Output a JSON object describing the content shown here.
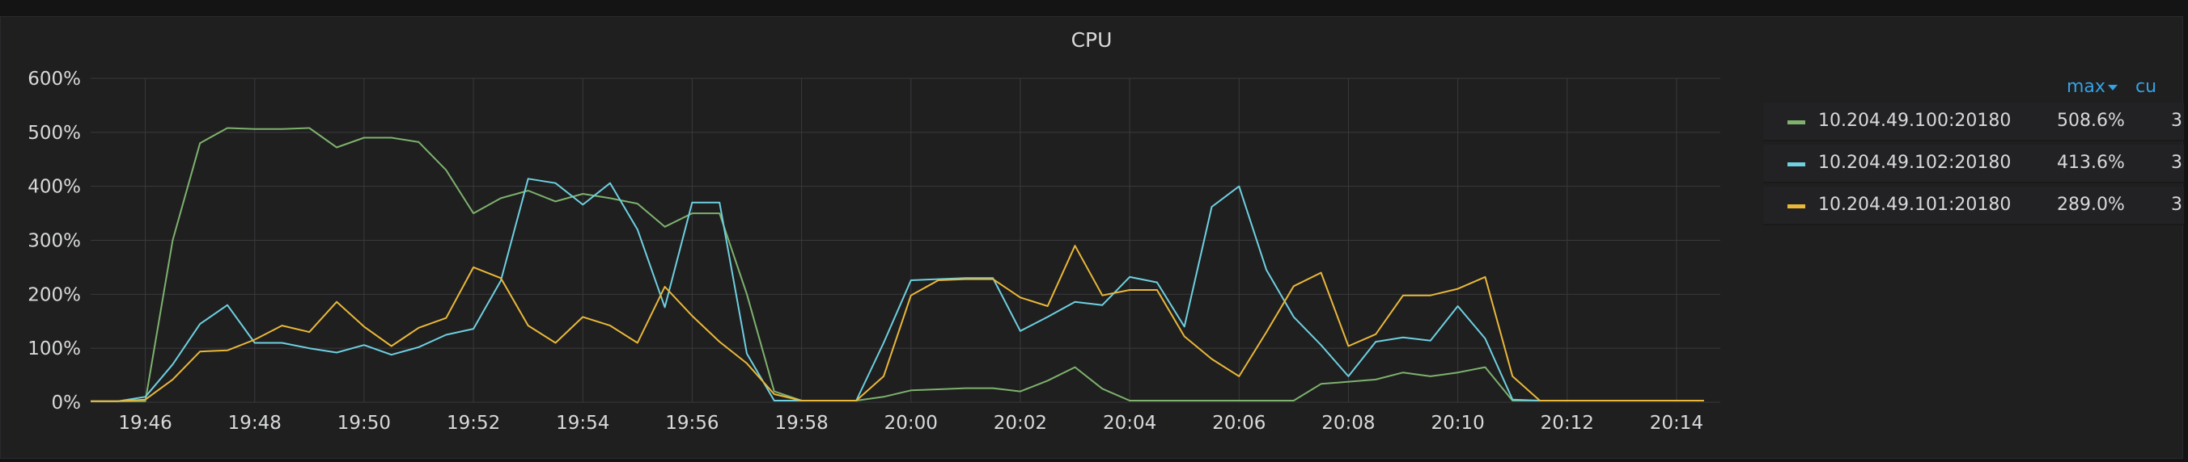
{
  "panel": {
    "title": "CPU"
  },
  "legend": {
    "columns": {
      "max": "max",
      "current": "cu"
    },
    "rows": [
      {
        "name": "10.204.49.100:20180",
        "max": "508.6%",
        "current": "3",
        "color": "#7eb26d"
      },
      {
        "name": "10.204.49.102:20180",
        "max": "413.6%",
        "current": "3",
        "color": "#6ed0e0"
      },
      {
        "name": "10.204.49.101:20180",
        "max": "289.0%",
        "current": "3",
        "color": "#eab839"
      }
    ]
  },
  "chart_data": {
    "type": "line",
    "title": "CPU",
    "xlabel": "",
    "ylabel": "",
    "ylim": [
      0,
      600
    ],
    "yticks": [
      "0%",
      "100%",
      "200%",
      "300%",
      "400%",
      "500%",
      "600%"
    ],
    "xticks": [
      "19:46",
      "19:48",
      "19:50",
      "19:52",
      "19:54",
      "19:56",
      "19:58",
      "20:00",
      "20:02",
      "20:04",
      "20:06",
      "20:08",
      "20:10",
      "20:12",
      "20:14"
    ],
    "xlim_minutes_since_19_45": [
      0,
      29.8
    ],
    "grid": true,
    "legend_placement": "right",
    "series": [
      {
        "name": "10.204.49.100:20180",
        "color": "#7eb26d",
        "points": [
          [
            "19:45",
            2
          ],
          [
            "19:45:30",
            2
          ],
          [
            "19:46",
            2
          ],
          [
            "19:46:30",
            300
          ],
          [
            "19:47",
            480
          ],
          [
            "19:47:30",
            508
          ],
          [
            "19:48",
            506
          ],
          [
            "19:48:30",
            506
          ],
          [
            "19:49",
            508
          ],
          [
            "19:49:30",
            472
          ],
          [
            "19:50",
            490
          ],
          [
            "19:50:30",
            490
          ],
          [
            "19:51",
            482
          ],
          [
            "19:51:30",
            430
          ],
          [
            "19:52",
            350
          ],
          [
            "19:52:30",
            378
          ],
          [
            "19:53",
            392
          ],
          [
            "19:53:30",
            372
          ],
          [
            "19:54",
            386
          ],
          [
            "19:54:30",
            378
          ],
          [
            "19:55",
            368
          ],
          [
            "19:55:30",
            325
          ],
          [
            "19:56",
            350
          ],
          [
            "19:56:30",
            350
          ],
          [
            "19:57",
            200
          ],
          [
            "19:57:30",
            20
          ],
          [
            "19:58",
            3
          ],
          [
            "19:58:30",
            3
          ],
          [
            "19:59",
            3
          ],
          [
            "19:59:30",
            10
          ],
          [
            "20:00",
            22
          ],
          [
            "20:00:30",
            24
          ],
          [
            "20:01",
            26
          ],
          [
            "20:01:30",
            26
          ],
          [
            "20:02",
            20
          ],
          [
            "20:02:30",
            40
          ],
          [
            "20:03",
            65
          ],
          [
            "20:03:30",
            25
          ],
          [
            "20:04",
            3
          ],
          [
            "20:04:30",
            3
          ],
          [
            "20:05",
            3
          ],
          [
            "20:05:30",
            3
          ],
          [
            "20:06",
            3
          ],
          [
            "20:06:30",
            3
          ],
          [
            "20:07",
            3
          ],
          [
            "20:07:30",
            34
          ],
          [
            "20:08",
            38
          ],
          [
            "20:08:30",
            42
          ],
          [
            "20:09",
            55
          ],
          [
            "20:09:30",
            48
          ],
          [
            "20:10",
            55
          ],
          [
            "20:10:30",
            65
          ],
          [
            "20:11",
            3
          ],
          [
            "20:11:30",
            3
          ],
          [
            "20:12",
            3
          ],
          [
            "20:12:30",
            3
          ],
          [
            "20:13",
            3
          ],
          [
            "20:13:30",
            3
          ],
          [
            "20:14",
            3
          ],
          [
            "20:14:30",
            3
          ]
        ]
      },
      {
        "name": "10.204.49.102:20180",
        "color": "#6ed0e0",
        "points": [
          [
            "19:45",
            2
          ],
          [
            "19:45:30",
            2
          ],
          [
            "19:46",
            10
          ],
          [
            "19:46:30",
            70
          ],
          [
            "19:47",
            145
          ],
          [
            "19:47:30",
            180
          ],
          [
            "19:48",
            110
          ],
          [
            "19:48:30",
            110
          ],
          [
            "19:49",
            100
          ],
          [
            "19:49:30",
            92
          ],
          [
            "19:50",
            106
          ],
          [
            "19:50:30",
            88
          ],
          [
            "19:51",
            102
          ],
          [
            "19:51:30",
            125
          ],
          [
            "19:52",
            136
          ],
          [
            "19:52:30",
            225
          ],
          [
            "19:53",
            414
          ],
          [
            "19:53:30",
            406
          ],
          [
            "19:54",
            366
          ],
          [
            "19:54:30",
            406
          ],
          [
            "19:55",
            320
          ],
          [
            "19:55:30",
            176
          ],
          [
            "19:56",
            370
          ],
          [
            "19:56:30",
            370
          ],
          [
            "19:57",
            90
          ],
          [
            "19:57:30",
            3
          ],
          [
            "19:58",
            3
          ],
          [
            "19:58:30",
            3
          ],
          [
            "19:59",
            3
          ],
          [
            "19:59:30",
            110
          ],
          [
            "20:00",
            226
          ],
          [
            "20:00:30",
            228
          ],
          [
            "20:01",
            230
          ],
          [
            "20:01:30",
            230
          ],
          [
            "20:02",
            132
          ],
          [
            "20:02:30",
            158
          ],
          [
            "20:03",
            186
          ],
          [
            "20:03:30",
            180
          ],
          [
            "20:04",
            232
          ],
          [
            "20:04:30",
            222
          ],
          [
            "20:05",
            140
          ],
          [
            "20:05:30",
            362
          ],
          [
            "20:06",
            400
          ],
          [
            "20:06:30",
            245
          ],
          [
            "20:07",
            158
          ],
          [
            "20:07:30",
            106
          ],
          [
            "20:08",
            48
          ],
          [
            "20:08:30",
            112
          ],
          [
            "20:09",
            120
          ],
          [
            "20:09:30",
            114
          ],
          [
            "20:10",
            178
          ],
          [
            "20:10:30",
            118
          ],
          [
            "20:11",
            5
          ],
          [
            "20:11:30",
            3
          ],
          [
            "20:12",
            3
          ],
          [
            "20:12:30",
            3
          ],
          [
            "20:13",
            3
          ],
          [
            "20:13:30",
            3
          ],
          [
            "20:14",
            3
          ],
          [
            "20:14:30",
            3
          ]
        ]
      },
      {
        "name": "10.204.49.101:20180",
        "color": "#eab839",
        "points": [
          [
            "19:45",
            2
          ],
          [
            "19:45:30",
            2
          ],
          [
            "19:46",
            5
          ],
          [
            "19:46:30",
            42
          ],
          [
            "19:47",
            94
          ],
          [
            "19:47:30",
            96
          ],
          [
            "19:48",
            116
          ],
          [
            "19:48:30",
            142
          ],
          [
            "19:49",
            130
          ],
          [
            "19:49:30",
            186
          ],
          [
            "19:50",
            140
          ],
          [
            "19:50:30",
            104
          ],
          [
            "19:51",
            138
          ],
          [
            "19:51:30",
            156
          ],
          [
            "19:52",
            250
          ],
          [
            "19:52:30",
            230
          ],
          [
            "19:53",
            142
          ],
          [
            "19:53:30",
            110
          ],
          [
            "19:54",
            158
          ],
          [
            "19:54:30",
            142
          ],
          [
            "19:55",
            110
          ],
          [
            "19:55:30",
            214
          ],
          [
            "19:56",
            160
          ],
          [
            "19:56:30",
            112
          ],
          [
            "19:57",
            72
          ],
          [
            "19:57:30",
            15
          ],
          [
            "19:58",
            3
          ],
          [
            "19:58:30",
            3
          ],
          [
            "19:59",
            3
          ],
          [
            "19:59:30",
            48
          ],
          [
            "20:00",
            198
          ],
          [
            "20:00:30",
            226
          ],
          [
            "20:01",
            228
          ],
          [
            "20:01:30",
            228
          ],
          [
            "20:02",
            194
          ],
          [
            "20:02:30",
            178
          ],
          [
            "20:03",
            290
          ],
          [
            "20:03:30",
            198
          ],
          [
            "20:04",
            208
          ],
          [
            "20:04:30",
            208
          ],
          [
            "20:05",
            122
          ],
          [
            "20:05:30",
            80
          ],
          [
            "20:06",
            48
          ],
          [
            "20:06:30",
            130
          ],
          [
            "20:07",
            215
          ],
          [
            "20:07:30",
            240
          ],
          [
            "20:08",
            104
          ],
          [
            "20:08:30",
            126
          ],
          [
            "20:09",
            198
          ],
          [
            "20:09:30",
            198
          ],
          [
            "20:10",
            210
          ],
          [
            "20:10:30",
            232
          ],
          [
            "20:11",
            48
          ],
          [
            "20:11:30",
            3
          ],
          [
            "20:12",
            3
          ],
          [
            "20:12:30",
            3
          ],
          [
            "20:13",
            3
          ],
          [
            "20:13:30",
            3
          ],
          [
            "20:14",
            3
          ],
          [
            "20:14:30",
            3
          ]
        ]
      }
    ]
  }
}
